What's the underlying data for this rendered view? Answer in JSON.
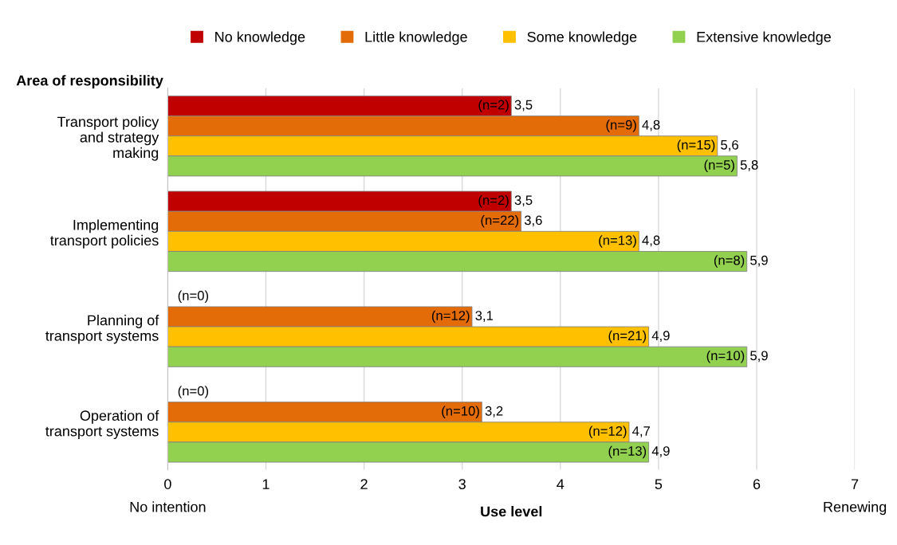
{
  "chart_data": {
    "type": "bar",
    "orientation": "horizontal",
    "ylabel": "Area of responsibility",
    "xlabel": "Use level",
    "categories": [
      "Transport policy\nand strategy\nmaking",
      "Implementing\ntransport policies",
      "Planning of\ntransport systems",
      "Operation of\ntransport systems"
    ],
    "series": [
      {
        "name": "No knowledge",
        "color": "#c00000",
        "values": [
          3.5,
          3.5,
          null,
          null
        ],
        "value_labels": [
          "3,5",
          "3,5",
          null,
          null
        ]
      },
      {
        "name": "Little knowledge",
        "color": "#e36c09",
        "values": [
          4.8,
          3.6,
          3.1,
          3.2
        ],
        "value_labels": [
          "4,8",
          "3,6",
          "3,1",
          "3,2"
        ]
      },
      {
        "name": "Some knowledge",
        "color": "#ffc000",
        "values": [
          5.6,
          4.8,
          4.9,
          4.7
        ],
        "value_labels": [
          "5,6",
          "4,8",
          "4,9",
          "4,7"
        ]
      },
      {
        "name": "Extensive knowledge",
        "color": "#92d050",
        "values": [
          5.8,
          5.9,
          5.9,
          4.9
        ],
        "value_labels": [
          "5,8",
          "5,9",
          "5,9",
          "4,9"
        ]
      }
    ],
    "annotations": [
      "(n=2)",
      "(n=2)",
      "(n=0)",
      "(n=0)",
      "(n=9)",
      "(n=22)",
      "(n=12)",
      "(n=10)",
      "(n=15)",
      "(n=13)",
      "(n=21)",
      "(n=12)",
      "(n=5)",
      "(n=8)",
      "(n=10)",
      "(n=13)"
    ],
    "xlim": [
      0,
      7
    ],
    "xticks": [
      {
        "value": 0,
        "label": "0\nNo intention"
      },
      1,
      2,
      3,
      4,
      5,
      6,
      {
        "value": 7,
        "label": "7\nRenewing"
      }
    ],
    "grid": "x",
    "legend": "top"
  }
}
